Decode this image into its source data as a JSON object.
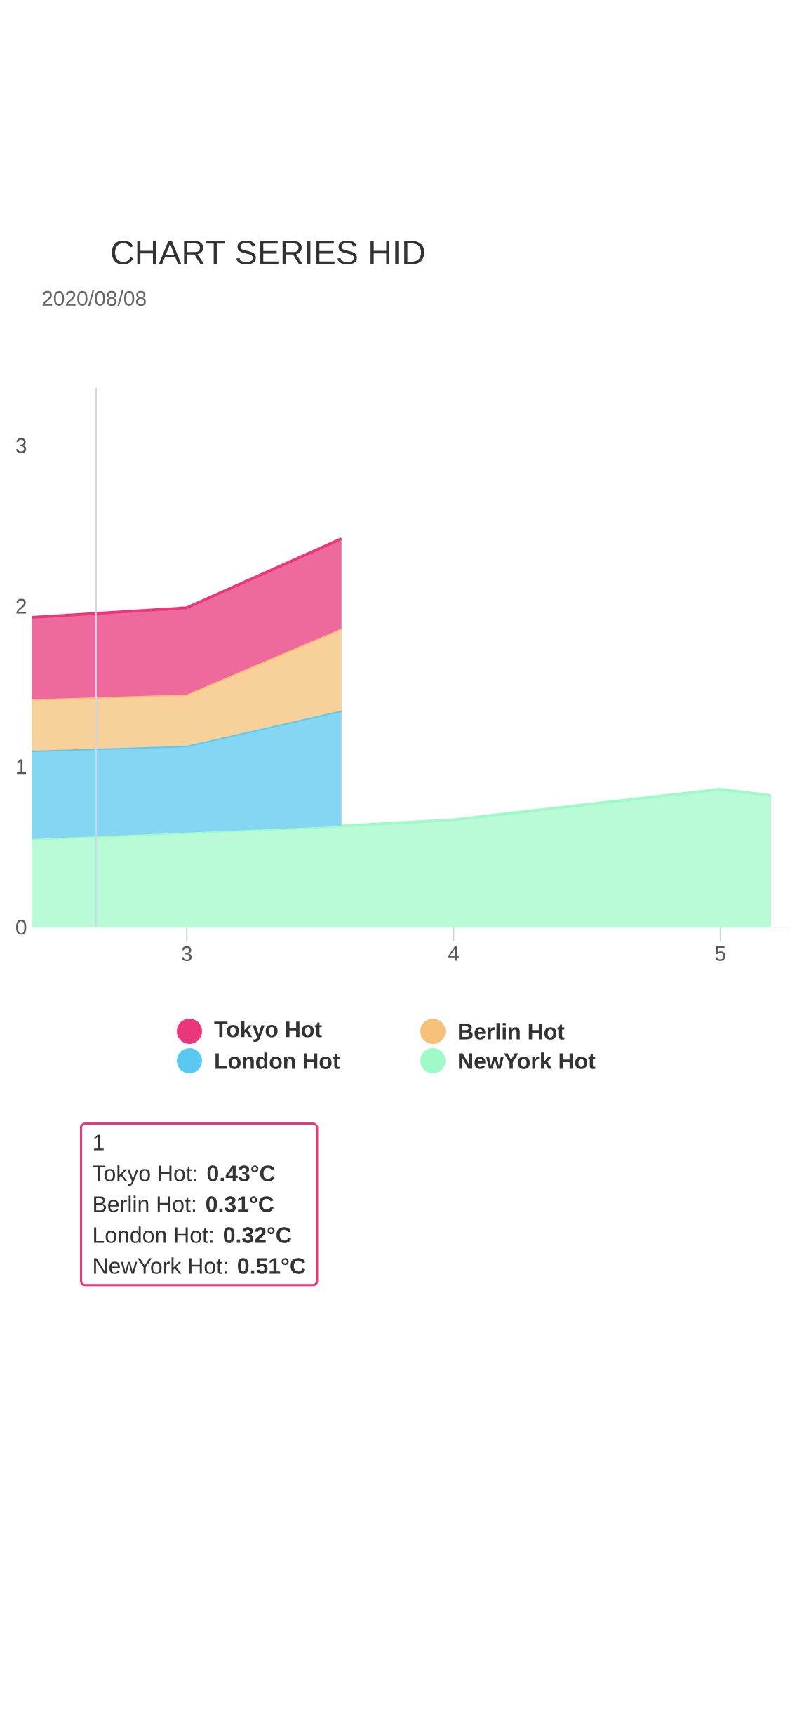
{
  "chart_data": {
    "type": "area",
    "title": "CHART SERIES HID",
    "subtitle": "2020/08/08",
    "stacked": true,
    "series": [
      {
        "name": "NewYork Hot",
        "color": "#a0fac8",
        "x": [
          2.42,
          3,
          3.58,
          4,
          5,
          5.19
        ],
        "values": [
          0.55,
          0.59,
          0.63,
          0.67,
          0.86,
          0.82
        ]
      },
      {
        "name": "London Hot",
        "color": "#5bc8ef",
        "x": [
          2.42,
          3,
          3.58
        ],
        "values": [
          0.55,
          0.54,
          0.72
        ]
      },
      {
        "name": "Berlin Hot",
        "color": "#f5c078",
        "x": [
          2.42,
          3,
          3.58
        ],
        "values": [
          0.32,
          0.32,
          0.51
        ]
      },
      {
        "name": "Tokyo Hot",
        "color": "#e8387b",
        "x": [
          2.42,
          3,
          3.58
        ],
        "values": [
          0.51,
          0.54,
          0.56
        ]
      }
    ],
    "xlim": [
      2.42,
      5.26
    ],
    "ylim": [
      0,
      3.36
    ],
    "xticks": [
      3,
      4,
      5
    ],
    "yticks": [
      0,
      1,
      2,
      3
    ],
    "ref_lines": [
      {
        "axis": "x",
        "value": 2.66,
        "color": "#ccd6eb"
      }
    ],
    "legend": "bottom",
    "annotations": [
      "1",
      "Tokyo Hot: **0.43°C**",
      "Berlin Hot: **0.31°C**",
      "London Hot: **0.32°C**",
      "NewYork Hot: **0.51°C**"
    ]
  }
}
